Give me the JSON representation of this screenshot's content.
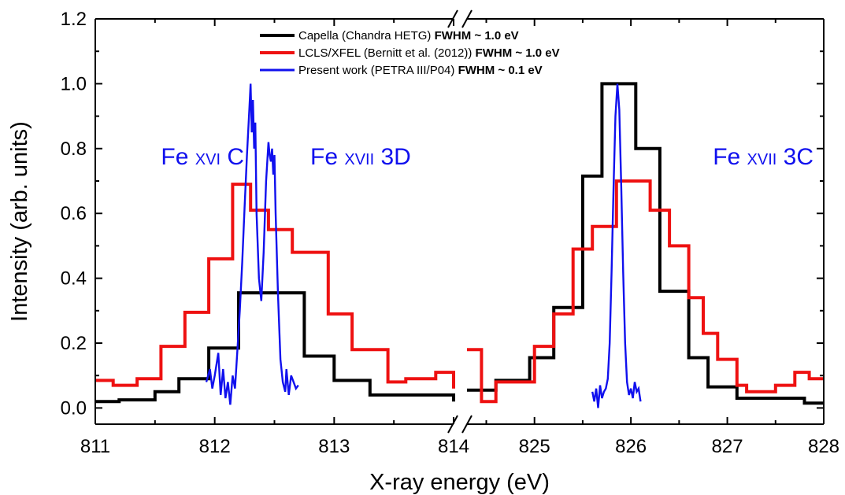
{
  "chart_data": {
    "type": "line",
    "xlabel": "X-ray energy (eV)",
    "ylabel": "Intensity (arb. units)",
    "ylim": [
      -0.05,
      1.2
    ],
    "y_ticks": [
      "0.0",
      "0.2",
      "0.4",
      "0.6",
      "0.8",
      "1.0",
      "1.2"
    ],
    "x_break": true,
    "x_segments": [
      {
        "range": [
          811,
          814
        ],
        "ticks": [
          "811",
          "812",
          "813",
          "814"
        ]
      },
      {
        "range": [
          824.3,
          828
        ],
        "ticks": [
          "825",
          "826",
          "827",
          "828"
        ]
      }
    ],
    "legend_position": "top-center",
    "legend": [
      {
        "series": "capella",
        "name": "Capella (Chandra HETG)",
        "suffix": "FWHM ~ 1.0 eV",
        "color": "#000000"
      },
      {
        "series": "lcls",
        "name": "LCLS/XFEL (Bernitt et al. (2012))",
        "suffix": "FWHM ~ 1.0 eV",
        "color": "#ee1111"
      },
      {
        "series": "present",
        "name": "Present work (PETRA III/P04)",
        "suffix": "FWHM ~ 0.1 eV",
        "color": "#1010ee"
      }
    ],
    "annotations": [
      {
        "main": "Fe ",
        "small": "XVI",
        "tail": " C",
        "x": 811.55,
        "y": 0.78,
        "color": "#1010ee"
      },
      {
        "main": "Fe ",
        "small": "XVII",
        "tail": " 3D",
        "x": 812.8,
        "y": 0.78,
        "color": "#1010ee"
      },
      {
        "main": "Fe ",
        "small": "XVII",
        "tail": " 3C",
        "x": 826.85,
        "y": 0.78,
        "color": "#1010ee"
      }
    ],
    "series": [
      {
        "id": "capella",
        "name": "Capella (Chandra HETG)",
        "color": "#000000",
        "style": "step",
        "segments": [
          [
            [
              811,
              0.02
            ],
            [
              811.2,
              0.02
            ],
            [
              811.2,
              0.025
            ],
            [
              811.5,
              0.025
            ],
            [
              811.5,
              0.05
            ],
            [
              811.7,
              0.05
            ],
            [
              811.7,
              0.09
            ],
            [
              811.95,
              0.09
            ],
            [
              811.95,
              0.185
            ],
            [
              812.2,
              0.185
            ],
            [
              812.2,
              0.355
            ],
            [
              812.75,
              0.355
            ],
            [
              812.75,
              0.16
            ],
            [
              813.0,
              0.16
            ],
            [
              813.0,
              0.085
            ],
            [
              813.3,
              0.085
            ],
            [
              813.3,
              0.04
            ],
            [
              814.0,
              0.04
            ],
            [
              814.0,
              0.02
            ]
          ],
          [
            [
              824.3,
              0.055
            ],
            [
              824.6,
              0.055
            ],
            [
              824.6,
              0.085
            ],
            [
              824.95,
              0.085
            ],
            [
              824.95,
              0.155
            ],
            [
              825.2,
              0.155
            ],
            [
              825.2,
              0.31
            ],
            [
              825.5,
              0.31
            ],
            [
              825.5,
              0.715
            ],
            [
              825.7,
              0.715
            ],
            [
              825.7,
              1.0
            ],
            [
              826.05,
              1.0
            ],
            [
              826.05,
              0.8
            ],
            [
              826.3,
              0.8
            ],
            [
              826.3,
              0.36
            ],
            [
              826.6,
              0.36
            ],
            [
              826.6,
              0.155
            ],
            [
              826.8,
              0.155
            ],
            [
              826.8,
              0.065
            ],
            [
              827.1,
              0.065
            ],
            [
              827.1,
              0.03
            ],
            [
              827.8,
              0.03
            ],
            [
              827.8,
              0.015
            ],
            [
              828,
              0.015
            ]
          ]
        ]
      },
      {
        "id": "lcls",
        "name": "LCLS/XFEL (Bernitt et al. (2012))",
        "color": "#ee1111",
        "style": "step",
        "segments": [
          [
            [
              811,
              0.085
            ],
            [
              811.15,
              0.085
            ],
            [
              811.15,
              0.07
            ],
            [
              811.35,
              0.07
            ],
            [
              811.35,
              0.09
            ],
            [
              811.55,
              0.09
            ],
            [
              811.55,
              0.19
            ],
            [
              811.75,
              0.19
            ],
            [
              811.75,
              0.295
            ],
            [
              811.95,
              0.295
            ],
            [
              811.95,
              0.46
            ],
            [
              812.15,
              0.46
            ],
            [
              812.15,
              0.69
            ],
            [
              812.3,
              0.69
            ],
            [
              812.3,
              0.61
            ],
            [
              812.45,
              0.61
            ],
            [
              812.45,
              0.55
            ],
            [
              812.65,
              0.55
            ],
            [
              812.65,
              0.48
            ],
            [
              812.95,
              0.48
            ],
            [
              812.95,
              0.29
            ],
            [
              813.15,
              0.29
            ],
            [
              813.15,
              0.18
            ],
            [
              813.45,
              0.18
            ],
            [
              813.45,
              0.08
            ],
            [
              813.6,
              0.08
            ],
            [
              813.6,
              0.09
            ],
            [
              813.85,
              0.09
            ],
            [
              813.85,
              0.11
            ],
            [
              814.0,
              0.11
            ],
            [
              814.0,
              0.06
            ]
          ],
          [
            [
              824.3,
              0.18
            ],
            [
              824.45,
              0.18
            ],
            [
              824.45,
              0.02
            ],
            [
              824.6,
              0.02
            ],
            [
              824.6,
              0.08
            ],
            [
              825.0,
              0.08
            ],
            [
              825.0,
              0.19
            ],
            [
              825.2,
              0.19
            ],
            [
              825.2,
              0.29
            ],
            [
              825.4,
              0.29
            ],
            [
              825.4,
              0.49
            ],
            [
              825.6,
              0.49
            ],
            [
              825.6,
              0.56
            ],
            [
              825.85,
              0.56
            ],
            [
              825.85,
              0.7
            ],
            [
              826.2,
              0.7
            ],
            [
              826.2,
              0.61
            ],
            [
              826.4,
              0.61
            ],
            [
              826.4,
              0.5
            ],
            [
              826.6,
              0.5
            ],
            [
              826.6,
              0.34
            ],
            [
              826.75,
              0.34
            ],
            [
              826.75,
              0.23
            ],
            [
              826.9,
              0.23
            ],
            [
              826.9,
              0.15
            ],
            [
              827.1,
              0.15
            ],
            [
              827.1,
              0.07
            ],
            [
              827.2,
              0.07
            ],
            [
              827.2,
              0.05
            ],
            [
              827.5,
              0.05
            ],
            [
              827.5,
              0.07
            ],
            [
              827.7,
              0.07
            ],
            [
              827.7,
              0.11
            ],
            [
              827.85,
              0.11
            ],
            [
              827.85,
              0.09
            ],
            [
              828,
              0.09
            ]
          ]
        ]
      },
      {
        "id": "present",
        "name": "Present work (PETRA III/P04)",
        "color": "#1010ee",
        "style": "line",
        "segments": [
          [
            [
              811.93,
              0.08
            ],
            [
              811.96,
              0.12
            ],
            [
              811.98,
              0.06
            ],
            [
              812.0,
              0.1
            ],
            [
              812.03,
              0.17
            ],
            [
              812.05,
              0.04
            ],
            [
              812.07,
              0.12
            ],
            [
              812.09,
              0.03
            ],
            [
              812.11,
              0.08
            ],
            [
              812.13,
              0.01
            ],
            [
              812.15,
              0.1
            ],
            [
              812.17,
              0.06
            ],
            [
              812.19,
              0.18
            ],
            [
              812.21,
              0.3
            ],
            [
              812.23,
              0.45
            ],
            [
              812.25,
              0.62
            ],
            [
              812.27,
              0.78
            ],
            [
              812.29,
              0.92
            ],
            [
              812.3,
              1.0
            ],
            [
              812.31,
              0.85
            ],
            [
              812.32,
              0.95
            ],
            [
              812.33,
              0.8
            ],
            [
              812.34,
              0.88
            ],
            [
              812.35,
              0.6
            ],
            [
              812.37,
              0.4
            ],
            [
              812.39,
              0.33
            ],
            [
              812.41,
              0.48
            ],
            [
              812.43,
              0.7
            ],
            [
              812.45,
              0.82
            ],
            [
              812.46,
              0.78
            ],
            [
              812.47,
              0.76
            ],
            [
              812.48,
              0.8
            ],
            [
              812.49,
              0.72
            ],
            [
              812.5,
              0.78
            ],
            [
              812.51,
              0.6
            ],
            [
              812.53,
              0.35
            ],
            [
              812.55,
              0.15
            ],
            [
              812.57,
              0.08
            ],
            [
              812.59,
              0.05
            ],
            [
              812.6,
              0.12
            ],
            [
              812.62,
              0.04
            ],
            [
              812.64,
              0.1
            ],
            [
              812.66,
              0.08
            ],
            [
              812.68,
              0.06
            ],
            [
              812.7,
              0.07
            ]
          ],
          [
            [
              825.6,
              0.05
            ],
            [
              825.62,
              0.02
            ],
            [
              825.64,
              0.06
            ],
            [
              825.66,
              0.0
            ],
            [
              825.68,
              0.07
            ],
            [
              825.7,
              0.03
            ],
            [
              825.72,
              0.05
            ],
            [
              825.74,
              0.06
            ],
            [
              825.76,
              0.09
            ],
            [
              825.78,
              0.2
            ],
            [
              825.8,
              0.42
            ],
            [
              825.82,
              0.68
            ],
            [
              825.84,
              0.9
            ],
            [
              825.86,
              1.0
            ],
            [
              825.88,
              0.92
            ],
            [
              825.9,
              0.68
            ],
            [
              825.92,
              0.42
            ],
            [
              825.94,
              0.2
            ],
            [
              825.96,
              0.08
            ],
            [
              825.98,
              0.04
            ],
            [
              826.0,
              0.06
            ],
            [
              826.02,
              0.03
            ],
            [
              826.04,
              0.08
            ],
            [
              826.06,
              0.05
            ],
            [
              826.08,
              0.06
            ],
            [
              826.1,
              0.02
            ]
          ]
        ]
      }
    ]
  }
}
